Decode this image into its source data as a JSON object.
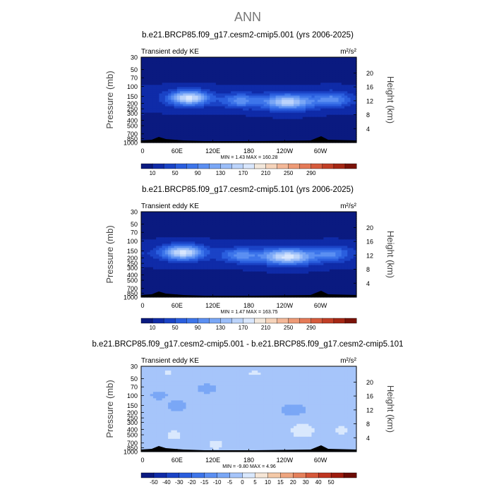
{
  "figure_title": "ANN",
  "colors": {
    "abs_scale": [
      "#0a1a80",
      "#0f2ba8",
      "#1a43c6",
      "#2a5ede",
      "#3d75ea",
      "#5b8ff2",
      "#7aa7f6",
      "#9bbef9",
      "#bcd4fb",
      "#d9e7fd",
      "#f3e8dc",
      "#f6d4bb",
      "#f4b898",
      "#ee9a76",
      "#e57a57",
      "#d65b3c",
      "#c13e26",
      "#a52714",
      "#7a1208"
    ],
    "diff_scale": [
      "#0a1a80",
      "#0f2ba8",
      "#1a43c6",
      "#2a5ede",
      "#3d75ea",
      "#5b8ff2",
      "#7aa7f6",
      "#a6c5fa",
      "#d9e8fd",
      "#f6e6d6",
      "#f4c9a7",
      "#eea57f",
      "#e5805b",
      "#d6583a",
      "#bf3520",
      "#9e1c0e",
      "#6b0b04"
    ],
    "abs_ticks": [
      "10",
      "50",
      "90",
      "130",
      "170",
      "210",
      "250",
      "290"
    ],
    "diff_ticks": [
      "-50",
      "-40",
      "-30",
      "-20",
      "-15",
      "-10",
      "-5",
      "0",
      "5",
      "10",
      "15",
      "20",
      "30",
      "40",
      "50"
    ]
  },
  "chart_data": [
    {
      "type": "heatmap",
      "title": "b.e21.BRCP85.f09_g17.cesm2-cmip5.001 (yrs 2006-2025)",
      "left_label": "Transient eddy KE",
      "units_label": "m²/s²",
      "ylabel": "Pressure (mb)",
      "y2label": "Height (km)",
      "x_ticks": [
        "0",
        "60E",
        "120E",
        "180",
        "120W",
        "60W"
      ],
      "x_range_deg": [
        0,
        360
      ],
      "y_ticks": [
        "30",
        "50",
        "70",
        "100",
        "150",
        "200",
        "250",
        "300",
        "400",
        "500",
        "700",
        "850",
        "1000"
      ],
      "y_ticks_value": [
        30,
        50,
        70,
        100,
        150,
        200,
        250,
        300,
        400,
        500,
        700,
        850,
        1000
      ],
      "y_range_mb": [
        30,
        1000
      ],
      "y2_ticks": [
        "4",
        "8",
        "12",
        "16",
        "20"
      ],
      "stats": "MIN =    1.43   MAX = 160.28",
      "min": 1.43,
      "max": 160.28,
      "scale": "abs",
      "jets": [
        {
          "lon": 80,
          "p": 160,
          "peak": 160,
          "wlon": 32,
          "wp": 0.3
        },
        {
          "lon": 245,
          "p": 190,
          "peak": 140,
          "wlon": 42,
          "wp": 0.32
        },
        {
          "lon": 165,
          "p": 180,
          "peak": 80,
          "wlon": 30,
          "wp": 0.28
        },
        {
          "lon": 320,
          "p": 170,
          "peak": 80,
          "wlon": 30,
          "wp": 0.3
        }
      ]
    },
    {
      "type": "heatmap",
      "title": "b.e21.BRCP85.f09_g17.cesm2-cmip5.101 (yrs 2006-2025)",
      "left_label": "Transient eddy KE",
      "units_label": "m²/s²",
      "ylabel": "Pressure (mb)",
      "y2label": "Height (km)",
      "x_ticks": [
        "0",
        "60E",
        "120E",
        "180",
        "120W",
        "60W"
      ],
      "x_range_deg": [
        0,
        360
      ],
      "y_ticks": [
        "30",
        "50",
        "70",
        "100",
        "150",
        "200",
        "250",
        "300",
        "400",
        "500",
        "700",
        "850",
        "1000"
      ],
      "y_ticks_value": [
        30,
        50,
        70,
        100,
        150,
        200,
        250,
        300,
        400,
        500,
        700,
        850,
        1000
      ],
      "y_range_mb": [
        30,
        1000
      ],
      "y2_ticks": [
        "4",
        "8",
        "12",
        "16",
        "20"
      ],
      "stats": "MIN =    1.47   MAX = 163.75",
      "min": 1.47,
      "max": 163.75,
      "scale": "abs",
      "jets": [
        {
          "lon": 70,
          "p": 160,
          "peak": 160,
          "wlon": 34,
          "wp": 0.3
        },
        {
          "lon": 245,
          "p": 190,
          "peak": 160,
          "wlon": 44,
          "wp": 0.32
        },
        {
          "lon": 165,
          "p": 180,
          "peak": 80,
          "wlon": 30,
          "wp": 0.28
        },
        {
          "lon": 320,
          "p": 170,
          "peak": 70,
          "wlon": 30,
          "wp": 0.3
        }
      ]
    },
    {
      "type": "heatmap",
      "title": "b.e21.BRCP85.f09_g17.cesm2-cmip5.001 - b.e21.BRCP85.f09_g17.cesm2-cmip5.101",
      "left_label": "Transient eddy KE",
      "units_label": "m²/s²",
      "ylabel": "Pressure (mb)",
      "y2label": "Height (km)",
      "x_ticks": [
        "0",
        "60E",
        "120E",
        "180",
        "120W",
        "60W"
      ],
      "x_range_deg": [
        0,
        360
      ],
      "y_ticks": [
        "30",
        "50",
        "70",
        "100",
        "150",
        "200",
        "250",
        "300",
        "400",
        "500",
        "700",
        "850",
        "1000"
      ],
      "y_ticks_value": [
        30,
        50,
        70,
        100,
        150,
        200,
        250,
        300,
        400,
        500,
        700,
        850,
        1000
      ],
      "y_range_mb": [
        30,
        1000
      ],
      "y2_ticks": [
        "4",
        "8",
        "12",
        "16",
        "20"
      ],
      "stats": "MIN =   -9.80   MAX =    4.96",
      "min": -9.8,
      "max": 4.96,
      "scale": "diff",
      "anomalies": [
        {
          "lon": 60,
          "p": 150,
          "val": -7,
          "wlon": 14,
          "wp": 0.22
        },
        {
          "lon": 255,
          "p": 180,
          "val": -7,
          "wlon": 22,
          "wp": 0.22
        },
        {
          "lon": 110,
          "p": 75,
          "val": -6,
          "wlon": 16,
          "wp": 0.2
        },
        {
          "lon": 30,
          "p": 100,
          "val": -6,
          "wlon": 14,
          "wp": 0.18
        },
        {
          "lon": 270,
          "p": 420,
          "val": 5,
          "wlon": 22,
          "wp": 0.35
        },
        {
          "lon": 125,
          "p": 750,
          "val": 4,
          "wlon": 18,
          "wp": 0.25
        },
        {
          "lon": 55,
          "p": 500,
          "val": 4,
          "wlon": 18,
          "wp": 0.25
        },
        {
          "lon": 335,
          "p": 420,
          "val": 4,
          "wlon": 12,
          "wp": 0.25
        },
        {
          "lon": 45,
          "p": 40,
          "val": 4,
          "wlon": 10,
          "wp": 0.12
        },
        {
          "lon": 190,
          "p": 40,
          "val": 4,
          "wlon": 12,
          "wp": 0.12
        }
      ]
    }
  ]
}
